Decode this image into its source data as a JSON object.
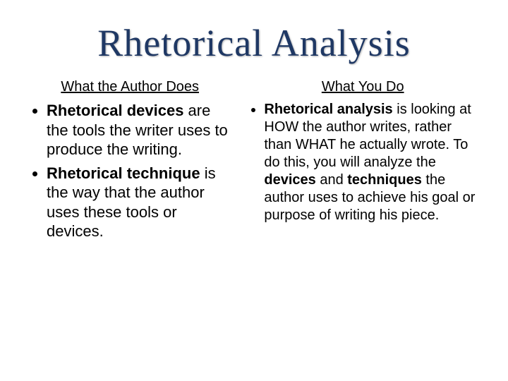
{
  "title": "Rhetorical Analysis",
  "colors": {
    "title_color": "#1f3864",
    "body_color": "#000000",
    "background": "#ffffff"
  },
  "typography": {
    "title_font": "Georgia, serif",
    "title_fontsize": 54,
    "body_font": "Arial, sans-serif",
    "subheading_fontsize": 20,
    "left_body_fontsize": 22,
    "right_body_fontsize": 20
  },
  "left": {
    "heading": "What the Author Does",
    "item1_bold": "Rhetorical devices",
    "item1_rest": " are the tools the writer uses to produce the writing.",
    "item2_bold": "Rhetorical technique",
    "item2_rest": " is the way that the author uses these tools or devices."
  },
  "right": {
    "heading": "What You Do",
    "item1_bold1": "Rhetorical analysis",
    "item1_mid": " is looking at HOW the author writes, rather than WHAT he actually wrote. To do this, you will analyze the ",
    "item1_bold2": "devices",
    "item1_and": " and ",
    "item1_bold3": "techniques",
    "item1_rest": " the author uses to achieve his goal or purpose of writing his piece."
  }
}
